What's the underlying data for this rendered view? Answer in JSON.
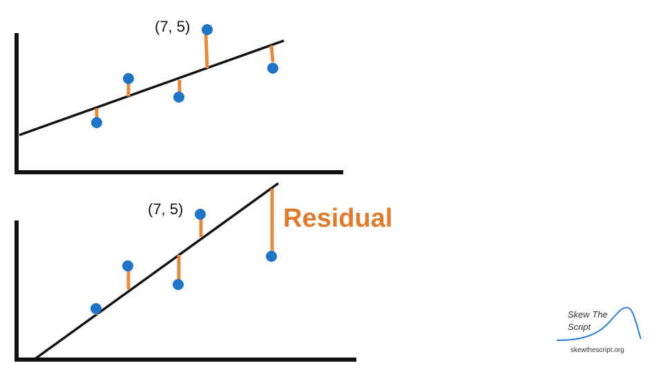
{
  "colors": {
    "point": "#1F74C8",
    "residual": "#E58A3E",
    "line": "#111111",
    "axis": "#111111",
    "residual_text": "#E07B2E",
    "logo_curve": "#2A7FD4"
  },
  "top_plot": {
    "point_label": "(7, 5)"
  },
  "bottom_plot": {
    "point_label": "(7, 5)"
  },
  "residual_label": "Residual",
  "logo": {
    "line1": "Skew The",
    "line2": "Script",
    "url": "skewthescript.org",
    "icon": "bell-curve-icon"
  }
}
